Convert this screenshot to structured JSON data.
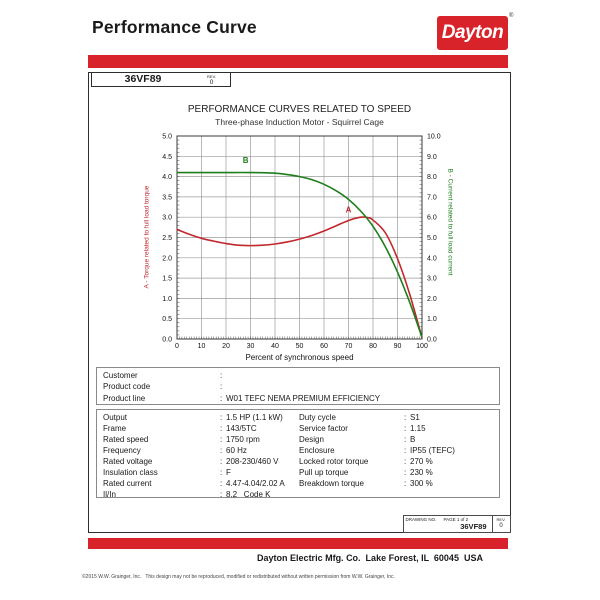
{
  "page": {
    "title": "Performance Curve",
    "logo_text": "Dayton",
    "logo_reg": "®"
  },
  "part_header": {
    "part_number": "36VF89",
    "rev_label": "REV.",
    "rev_value": "0"
  },
  "separator": ":",
  "chart_data": {
    "type": "line",
    "title": "PERFORMANCE CURVES RELATED TO SPEED",
    "subtitle": "Three-phase Induction Motor - Squirrel Cage",
    "xlabel": "Percent of synchronous speed",
    "grid": true,
    "x_axis": {
      "min": 0,
      "max": 100,
      "step": 10
    },
    "left_axis": {
      "label": "A - Torque related to full load torque",
      "min": 0,
      "max": 5,
      "step": 0.5,
      "color": "#c1272d"
    },
    "right_axis": {
      "label": "B - Current related to full load current",
      "min": 0,
      "max": 10,
      "step": 1,
      "color": "#1e7e1e"
    },
    "series": [
      {
        "name": "A",
        "axis": "left",
        "color": "#c1272d",
        "label_pos": {
          "x": 70,
          "y": 3.12
        },
        "points": [
          [
            0,
            2.7
          ],
          [
            5,
            2.58
          ],
          [
            10,
            2.48
          ],
          [
            15,
            2.41
          ],
          [
            20,
            2.35
          ],
          [
            25,
            2.31
          ],
          [
            30,
            2.3
          ],
          [
            35,
            2.31
          ],
          [
            40,
            2.34
          ],
          [
            45,
            2.39
          ],
          [
            50,
            2.46
          ],
          [
            55,
            2.55
          ],
          [
            60,
            2.66
          ],
          [
            65,
            2.79
          ],
          [
            70,
            2.92
          ],
          [
            75,
            3.0
          ],
          [
            78,
            2.99
          ],
          [
            80,
            2.93
          ],
          [
            85,
            2.62
          ],
          [
            90,
            1.98
          ],
          [
            95,
            1.1
          ],
          [
            100,
            0.03
          ]
        ]
      },
      {
        "name": "B",
        "axis": "right",
        "color": "#1e7e1e",
        "label_pos": {
          "x": 28,
          "y": 4.33
        },
        "points": [
          [
            0,
            8.2
          ],
          [
            10,
            8.2
          ],
          [
            20,
            8.2
          ],
          [
            30,
            8.2
          ],
          [
            40,
            8.17
          ],
          [
            45,
            8.1
          ],
          [
            50,
            8.0
          ],
          [
            55,
            7.85
          ],
          [
            60,
            7.62
          ],
          [
            65,
            7.3
          ],
          [
            70,
            6.88
          ],
          [
            75,
            6.3
          ],
          [
            80,
            5.55
          ],
          [
            85,
            4.55
          ],
          [
            90,
            3.3
          ],
          [
            95,
            1.8
          ],
          [
            100,
            0.08
          ]
        ]
      }
    ]
  },
  "customer_box": {
    "rows": [
      {
        "label": "Customer",
        "value": ""
      },
      {
        "label": "Product code",
        "value": ""
      },
      {
        "label": "Product line",
        "value": "W01 TEFC NEMA PREMIUM EFFICIENCY"
      }
    ]
  },
  "specs": {
    "left": [
      {
        "label": "Output",
        "value": "1.5 HP (1.1 kW)"
      },
      {
        "label": "Frame",
        "value": "143/5TC"
      },
      {
        "label": "Rated speed",
        "value": "1750 rpm"
      },
      {
        "label": "Frequency",
        "value": "60 Hz"
      },
      {
        "label": "Rated voltage",
        "value": "208-230/460 V"
      },
      {
        "label": "Insulation class",
        "value": "F"
      },
      {
        "label": "Rated current",
        "value": "4.47-4.04/2.02 A"
      },
      {
        "label": "Il/In",
        "value": "8.2   Code K"
      }
    ],
    "right": [
      {
        "label": "Duty cycle",
        "value": "S1"
      },
      {
        "label": "Service factor",
        "value": "1.15"
      },
      {
        "label": "Design",
        "value": "B"
      },
      {
        "label": "Enclosure",
        "value": "IP55 (TEFC)"
      },
      {
        "label": "Locked rotor torque",
        "value": "270 %"
      },
      {
        "label": "Pull up torque",
        "value": "230 %"
      },
      {
        "label": "Breakdown torque",
        "value": "300 %"
      }
    ]
  },
  "drawing_box": {
    "drawing_no_label": "DRAWING NO.",
    "page_label": "PAGE 1 of 2",
    "drawing_no": "36VF89",
    "rev_label": "REV.",
    "rev_value": "0"
  },
  "footer": {
    "company": "Dayton Electric Mfg. Co.  Lake Forest, IL  60045  USA",
    "copyright": "©2015 W.W. Grainger, Inc.   This design may not be reproduced, modified or redistributed without written permission from W.W. Grainger, Inc."
  },
  "colors": {
    "accent_red": "#d8232a",
    "grid": "#9b9b9b",
    "plot_border": "#3a3a3a"
  }
}
